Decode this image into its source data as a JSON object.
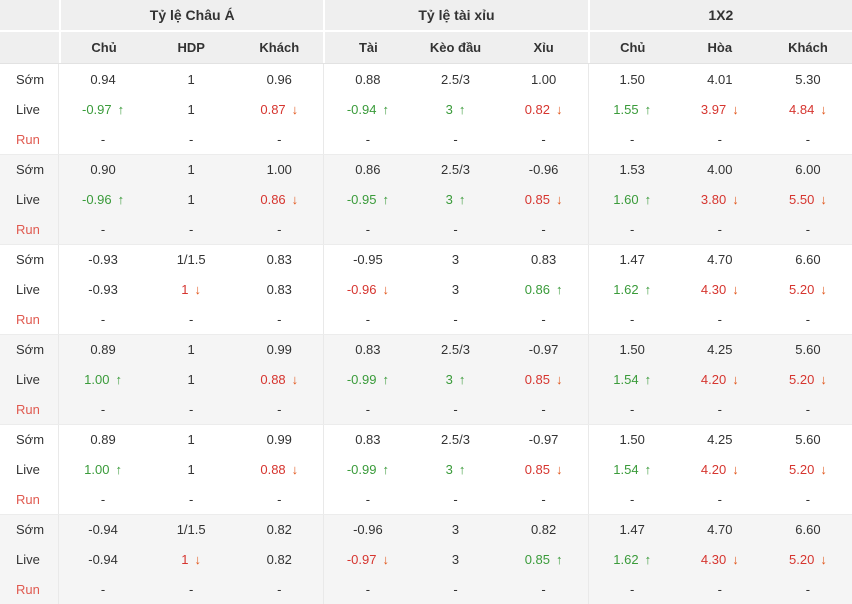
{
  "table": {
    "group_headers": [
      "Tỷ lệ Châu Á",
      "Tỷ lệ tài xỉu",
      "1X2"
    ],
    "columns": [
      "Chủ",
      "HDP",
      "Khách",
      "Tài",
      "Kèo đầu",
      "Xỉu",
      "Chủ",
      "Hòa",
      "Khách"
    ],
    "row_label_names": [
      "Sớm",
      "Live",
      "Run"
    ],
    "groups": [
      {
        "rows": [
          {
            "label": "Sớm",
            "cells": [
              [
                "0.94",
                "k",
                ""
              ],
              [
                "1",
                "k",
                ""
              ],
              [
                "0.96",
                "k",
                ""
              ],
              [
                "0.88",
                "k",
                ""
              ],
              [
                "2.5/3",
                "k",
                ""
              ],
              [
                "1.00",
                "k",
                ""
              ],
              [
                "1.50",
                "k",
                ""
              ],
              [
                "4.01",
                "k",
                ""
              ],
              [
                "5.30",
                "k",
                ""
              ]
            ]
          },
          {
            "label": "Live",
            "cells": [
              [
                "-0.97",
                "g",
                "u"
              ],
              [
                "1",
                "k",
                ""
              ],
              [
                "0.87",
                "r",
                "d"
              ],
              [
                "-0.94",
                "g",
                "u"
              ],
              [
                "3",
                "g",
                "u"
              ],
              [
                "0.82",
                "r",
                "d"
              ],
              [
                "1.55",
                "g",
                "u"
              ],
              [
                "3.97",
                "r",
                "d"
              ],
              [
                "4.84",
                "r",
                "d"
              ]
            ]
          },
          {
            "label": "Run",
            "cells": [
              [
                "-",
                "k",
                ""
              ],
              [
                "-",
                "k",
                ""
              ],
              [
                "-",
                "k",
                ""
              ],
              [
                "-",
                "k",
                ""
              ],
              [
                "-",
                "k",
                ""
              ],
              [
                "-",
                "k",
                ""
              ],
              [
                "-",
                "k",
                ""
              ],
              [
                "-",
                "k",
                ""
              ],
              [
                "-",
                "k",
                ""
              ]
            ]
          }
        ]
      },
      {
        "rows": [
          {
            "label": "Sớm",
            "cells": [
              [
                "0.90",
                "k",
                ""
              ],
              [
                "1",
                "k",
                ""
              ],
              [
                "1.00",
                "k",
                ""
              ],
              [
                "0.86",
                "k",
                ""
              ],
              [
                "2.5/3",
                "k",
                ""
              ],
              [
                "-0.96",
                "k",
                ""
              ],
              [
                "1.53",
                "k",
                ""
              ],
              [
                "4.00",
                "k",
                ""
              ],
              [
                "6.00",
                "k",
                ""
              ]
            ]
          },
          {
            "label": "Live",
            "cells": [
              [
                "-0.96",
                "g",
                "u"
              ],
              [
                "1",
                "k",
                ""
              ],
              [
                "0.86",
                "r",
                "d"
              ],
              [
                "-0.95",
                "g",
                "u"
              ],
              [
                "3",
                "g",
                "u"
              ],
              [
                "0.85",
                "r",
                "d"
              ],
              [
                "1.60",
                "g",
                "u"
              ],
              [
                "3.80",
                "r",
                "d"
              ],
              [
                "5.50",
                "r",
                "d"
              ]
            ]
          },
          {
            "label": "Run",
            "cells": [
              [
                "-",
                "k",
                ""
              ],
              [
                "-",
                "k",
                ""
              ],
              [
                "-",
                "k",
                ""
              ],
              [
                "-",
                "k",
                ""
              ],
              [
                "-",
                "k",
                ""
              ],
              [
                "-",
                "k",
                ""
              ],
              [
                "-",
                "k",
                ""
              ],
              [
                "-",
                "k",
                ""
              ],
              [
                "-",
                "k",
                ""
              ]
            ]
          }
        ]
      },
      {
        "rows": [
          {
            "label": "Sớm",
            "cells": [
              [
                "-0.93",
                "k",
                ""
              ],
              [
                "1/1.5",
                "k",
                ""
              ],
              [
                "0.83",
                "k",
                ""
              ],
              [
                "-0.95",
                "k",
                ""
              ],
              [
                "3",
                "k",
                ""
              ],
              [
                "0.83",
                "k",
                ""
              ],
              [
                "1.47",
                "k",
                ""
              ],
              [
                "4.70",
                "k",
                ""
              ],
              [
                "6.60",
                "k",
                ""
              ]
            ]
          },
          {
            "label": "Live",
            "cells": [
              [
                "-0.93",
                "k",
                ""
              ],
              [
                "1",
                "r",
                "d"
              ],
              [
                "0.83",
                "k",
                ""
              ],
              [
                "-0.96",
                "r",
                "d"
              ],
              [
                "3",
                "k",
                ""
              ],
              [
                "0.86",
                "g",
                "u"
              ],
              [
                "1.62",
                "g",
                "u"
              ],
              [
                "4.30",
                "r",
                "d"
              ],
              [
                "5.20",
                "r",
                "d"
              ]
            ]
          },
          {
            "label": "Run",
            "cells": [
              [
                "-",
                "k",
                ""
              ],
              [
                "-",
                "k",
                ""
              ],
              [
                "-",
                "k",
                ""
              ],
              [
                "-",
                "k",
                ""
              ],
              [
                "-",
                "k",
                ""
              ],
              [
                "-",
                "k",
                ""
              ],
              [
                "-",
                "k",
                ""
              ],
              [
                "-",
                "k",
                ""
              ],
              [
                "-",
                "k",
                ""
              ]
            ]
          }
        ]
      },
      {
        "rows": [
          {
            "label": "Sớm",
            "cells": [
              [
                "0.89",
                "k",
                ""
              ],
              [
                "1",
                "k",
                ""
              ],
              [
                "0.99",
                "k",
                ""
              ],
              [
                "0.83",
                "k",
                ""
              ],
              [
                "2.5/3",
                "k",
                ""
              ],
              [
                "-0.97",
                "k",
                ""
              ],
              [
                "1.50",
                "k",
                ""
              ],
              [
                "4.25",
                "k",
                ""
              ],
              [
                "5.60",
                "k",
                ""
              ]
            ]
          },
          {
            "label": "Live",
            "cells": [
              [
                "1.00",
                "g",
                "u"
              ],
              [
                "1",
                "k",
                ""
              ],
              [
                "0.88",
                "r",
                "d"
              ],
              [
                "-0.99",
                "g",
                "u"
              ],
              [
                "3",
                "g",
                "u"
              ],
              [
                "0.85",
                "r",
                "d"
              ],
              [
                "1.54",
                "g",
                "u"
              ],
              [
                "4.20",
                "r",
                "d"
              ],
              [
                "5.20",
                "r",
                "d"
              ]
            ]
          },
          {
            "label": "Run",
            "cells": [
              [
                "-",
                "k",
                ""
              ],
              [
                "-",
                "k",
                ""
              ],
              [
                "-",
                "k",
                ""
              ],
              [
                "-",
                "k",
                ""
              ],
              [
                "-",
                "k",
                ""
              ],
              [
                "-",
                "k",
                ""
              ],
              [
                "-",
                "k",
                ""
              ],
              [
                "-",
                "k",
                ""
              ],
              [
                "-",
                "k",
                ""
              ]
            ]
          }
        ]
      },
      {
        "rows": [
          {
            "label": "Sớm",
            "cells": [
              [
                "0.89",
                "k",
                ""
              ],
              [
                "1",
                "k",
                ""
              ],
              [
                "0.99",
                "k",
                ""
              ],
              [
                "0.83",
                "k",
                ""
              ],
              [
                "2.5/3",
                "k",
                ""
              ],
              [
                "-0.97",
                "k",
                ""
              ],
              [
                "1.50",
                "k",
                ""
              ],
              [
                "4.25",
                "k",
                ""
              ],
              [
                "5.60",
                "k",
                ""
              ]
            ]
          },
          {
            "label": "Live",
            "cells": [
              [
                "1.00",
                "g",
                "u"
              ],
              [
                "1",
                "k",
                ""
              ],
              [
                "0.88",
                "r",
                "d"
              ],
              [
                "-0.99",
                "g",
                "u"
              ],
              [
                "3",
                "g",
                "u"
              ],
              [
                "0.85",
                "r",
                "d"
              ],
              [
                "1.54",
                "g",
                "u"
              ],
              [
                "4.20",
                "r",
                "d"
              ],
              [
                "5.20",
                "r",
                "d"
              ]
            ]
          },
          {
            "label": "Run",
            "cells": [
              [
                "-",
                "k",
                ""
              ],
              [
                "-",
                "k",
                ""
              ],
              [
                "-",
                "k",
                ""
              ],
              [
                "-",
                "k",
                ""
              ],
              [
                "-",
                "k",
                ""
              ],
              [
                "-",
                "k",
                ""
              ],
              [
                "-",
                "k",
                ""
              ],
              [
                "-",
                "k",
                ""
              ],
              [
                "-",
                "k",
                ""
              ]
            ]
          }
        ]
      },
      {
        "rows": [
          {
            "label": "Sớm",
            "cells": [
              [
                "-0.94",
                "k",
                ""
              ],
              [
                "1/1.5",
                "k",
                ""
              ],
              [
                "0.82",
                "k",
                ""
              ],
              [
                "-0.96",
                "k",
                ""
              ],
              [
                "3",
                "k",
                ""
              ],
              [
                "0.82",
                "k",
                ""
              ],
              [
                "1.47",
                "k",
                ""
              ],
              [
                "4.70",
                "k",
                ""
              ],
              [
                "6.60",
                "k",
                ""
              ]
            ]
          },
          {
            "label": "Live",
            "cells": [
              [
                "-0.94",
                "k",
                ""
              ],
              [
                "1",
                "r",
                "d"
              ],
              [
                "0.82",
                "k",
                ""
              ],
              [
                "-0.97",
                "r",
                "d"
              ],
              [
                "3",
                "k",
                ""
              ],
              [
                "0.85",
                "g",
                "u"
              ],
              [
                "1.62",
                "g",
                "u"
              ],
              [
                "4.30",
                "r",
                "d"
              ],
              [
                "5.20",
                "r",
                "d"
              ]
            ]
          },
          {
            "label": "Run",
            "cells": [
              [
                "-",
                "k",
                ""
              ],
              [
                "-",
                "k",
                ""
              ],
              [
                "-",
                "k",
                ""
              ],
              [
                "-",
                "k",
                ""
              ],
              [
                "-",
                "k",
                ""
              ],
              [
                "-",
                "k",
                ""
              ],
              [
                "-",
                "k",
                ""
              ],
              [
                "-",
                "k",
                ""
              ],
              [
                "-",
                "k",
                ""
              ]
            ]
          }
        ]
      }
    ]
  },
  "icons": {
    "up_arrow": "↑",
    "down_arrow": "↓"
  },
  "colors": {
    "text": "#333333",
    "green": "#3a9b3a",
    "red": "#d6352f",
    "arrow_down": "#e2571c",
    "run_label": "#e05a50",
    "header_bg": "#efefef",
    "alt_group_bg": "#f5f5f5"
  }
}
